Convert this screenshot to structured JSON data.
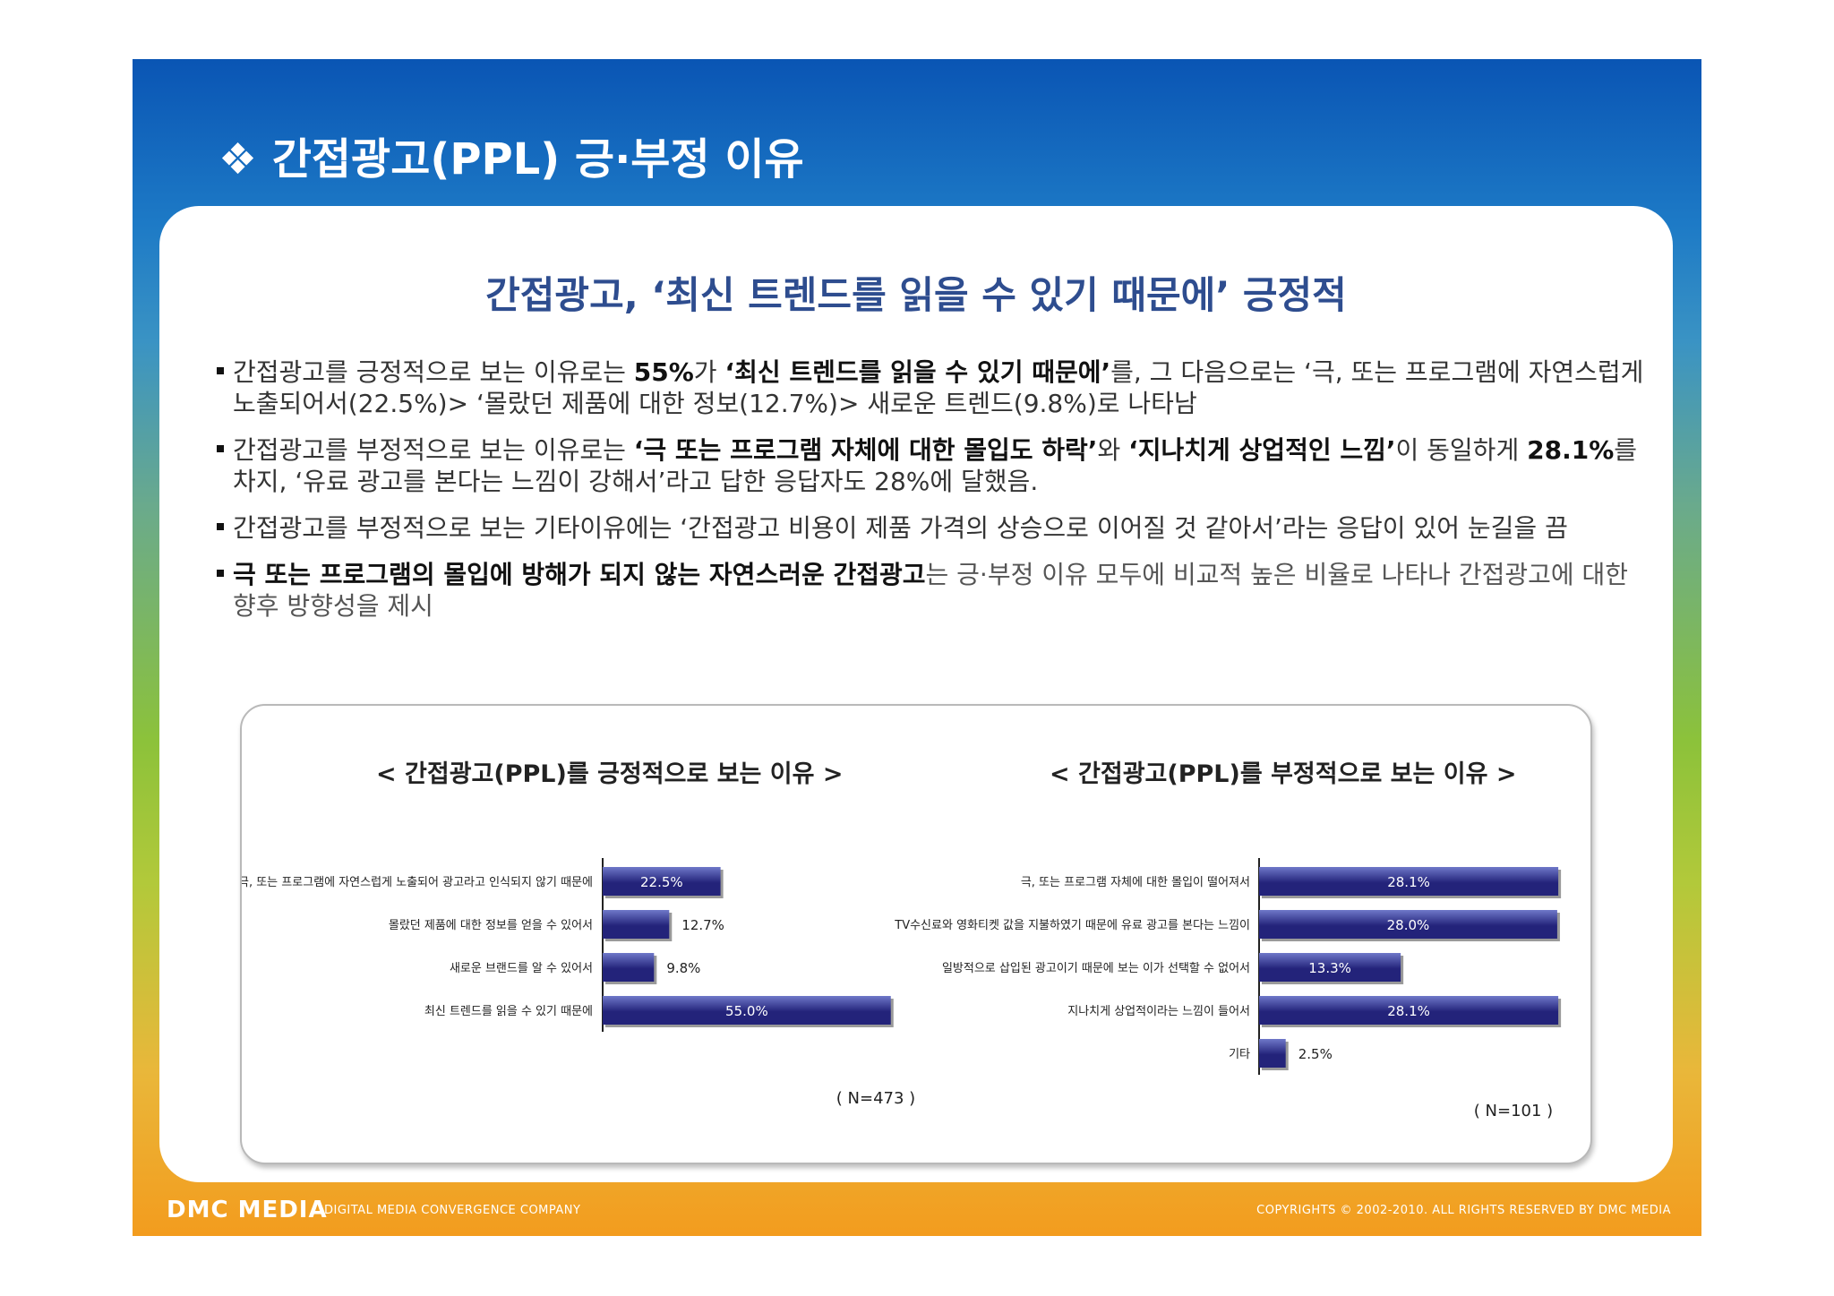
{
  "slide_title": "❖ 간접광고(PPL) 긍·부정 이유",
  "headline": "간접광고, ‘최신 트렌드를 읽을 수 있기 때문에’ 긍정적",
  "bullets": [
    {
      "p1": "간접광고를 긍정적으로 보는 이유로는 ",
      "b1": "55%",
      "p2": "가 ",
      "b2": "‘최신 트렌드를 읽을 수 있기 때문에’",
      "p3": "를, 그 다음으로는 ‘극, 또는 프로그램에 자연스럽게 노출되어서(22.5%)> ‘몰랐던 제품에 대한 정보(12.7%)> 새로운 트렌드(9.8%)로 나타남"
    },
    {
      "p1": "간접광고를 부정적으로 보는 이유로는 ",
      "b1": "‘극 또는 프로그램 자체에 대한 몰입도 하락’",
      "p2": "와 ",
      "b2": "‘지나치게 상업적인 느낌’",
      "p3": "이 동일하게 ",
      "b3": "28.1%",
      "p4": "를 차지, ‘유료 광고를 본다는 느낌이 강해서’라고 답한 응답자도 28%에 달했음."
    },
    {
      "p1": "간접광고를 부정적으로 보는 기타이유에는 ‘간접광고 비용이 제품 가격의 상승으로 이어질 것 같아서’라는 응답이 있어 눈길을 끔"
    },
    {
      "b1": "극 또는 프로그램의 몰입에 방해가 되지 않는 자연스러운 간접광고",
      "p1": "는 긍·부정 이유 모두에 비교적 높은 비율로 나타나 간접광고에 대한 향후 방향성을 제시"
    }
  ],
  "chart_data": [
    {
      "type": "bar",
      "orientation": "horizontal",
      "title": "< 간접광고(PPL)를 긍정적으로 보는 이유 >",
      "categories": [
        "극, 또는 프로그램에 자연스럽게 노출되어 광고라고 인식되지 않기 때문에",
        "몰랐던 제품에 대한 정보를 얻을 수 있어서",
        "새로운 브랜드를 알 수 있어서",
        "최신 트렌드를 읽을 수 있기 때문에"
      ],
      "values": [
        22.5,
        12.7,
        9.8,
        55.0
      ],
      "value_labels": [
        "22.5%",
        "12.7%",
        "9.8%",
        "55.0%"
      ],
      "unit": "%",
      "note": "( N=473 )"
    },
    {
      "type": "bar",
      "orientation": "horizontal",
      "title": "< 간접광고(PPL)를 부정적으로 보는 이유 >",
      "categories": [
        "극, 또는 프로그램 자체에 대한 몰입이 떨어져서",
        "TV수신료와 영화티켓 값을 지불하였기 때문에 유료 광고를 본다는 느낌이",
        "일방적으로 삽입된 광고이기 때문에 보는 이가 선택할 수 없어서",
        "지나치게 상업적이라는 느낌이 들어서",
        "기타"
      ],
      "values": [
        28.1,
        28.0,
        13.3,
        28.1,
        2.5
      ],
      "value_labels": [
        "28.1%",
        "28.0%",
        "13.3%",
        "28.1%",
        "2.5%"
      ],
      "unit": "%",
      "note": "( N=101 )"
    }
  ],
  "colors": {
    "bar_dark": "#23237a",
    "bar_light": "#6f78c9",
    "headline": "#2e4d8f",
    "frame_top": "#0a55b4",
    "frame_bottom": "#f39c1e"
  },
  "footer": {
    "logo": "DMC MEDIA",
    "tagline": "DIGITAL MEDIA CONVERGENCE COMPANY",
    "copyright": "COPYRIGHTS © 2002-2010. ALL RIGHTS RESERVED BY DMC MEDIA"
  }
}
